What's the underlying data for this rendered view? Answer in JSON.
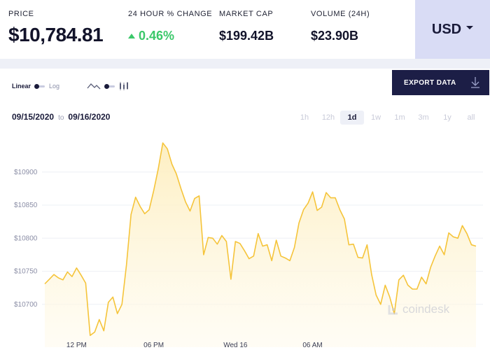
{
  "stats": {
    "price": {
      "label": "PRICE",
      "value": "$10,784.81"
    },
    "change": {
      "label": "24 HOUR % CHANGE",
      "value": "0.46%"
    },
    "market_cap": {
      "label": "MARKET CAP",
      "value": "$199.42B"
    },
    "volume": {
      "label": "VOLUME (24H)",
      "value": "$23.90B"
    }
  },
  "currency": {
    "selected": "USD"
  },
  "controls": {
    "scale": {
      "linear": "Linear",
      "log": "Log",
      "selected": "Linear"
    },
    "chart_type": {
      "selected": "line"
    },
    "export_label": "EXPORT DATA"
  },
  "date_range": {
    "from": "09/15/2020",
    "separator": "to",
    "to": "09/16/2020"
  },
  "ranges": [
    "1h",
    "12h",
    "1d",
    "1w",
    "1m",
    "3m",
    "1y",
    "all"
  ],
  "active_range": "1d",
  "watermark": "coindesk",
  "colors": {
    "line": "#f5c43a",
    "fill": "#fdf1cf",
    "positive": "#3bc86a",
    "accent": "#1c1e46"
  },
  "chart_data": {
    "type": "area",
    "title": "",
    "xlabel": "",
    "ylabel": "",
    "ylim": [
      10650,
      10940
    ],
    "x_tick_labels": [
      "12 PM",
      "06 PM",
      "Wed 16",
      "06 AM"
    ],
    "y_tick_labels": [
      "$10700",
      "$10750",
      "$10800",
      "$10850",
      "$10900"
    ],
    "y_ticks": [
      10700,
      10750,
      10800,
      10850,
      10900
    ],
    "x_ticks_index": [
      7,
      24,
      42,
      59
    ],
    "values": [
      10731,
      10738,
      10745,
      10740,
      10737,
      10749,
      10742,
      10755,
      10744,
      10732,
      10653,
      10658,
      10677,
      10660,
      10703,
      10711,
      10686,
      10700,
      10760,
      10836,
      10862,
      10848,
      10837,
      10843,
      10872,
      10905,
      10944,
      10935,
      10912,
      10897,
      10875,
      10855,
      10841,
      10860,
      10864,
      10775,
      10801,
      10800,
      10791,
      10804,
      10795,
      10738,
      10795,
      10792,
      10781,
      10769,
      10773,
      10807,
      10788,
      10790,
      10766,
      10797,
      10773,
      10770,
      10766,
      10786,
      10823,
      10843,
      10853,
      10870,
      10842,
      10847,
      10869,
      10861,
      10861,
      10843,
      10829,
      10790,
      10791,
      10771,
      10770,
      10790,
      10745,
      10714,
      10700,
      10729,
      10711,
      10686,
      10737,
      10744,
      10729,
      10723,
      10723,
      10741,
      10731,
      10756,
      10773,
      10788,
      10775,
      10808,
      10802,
      10800,
      10819,
      10807,
      10790,
      10788
    ]
  }
}
